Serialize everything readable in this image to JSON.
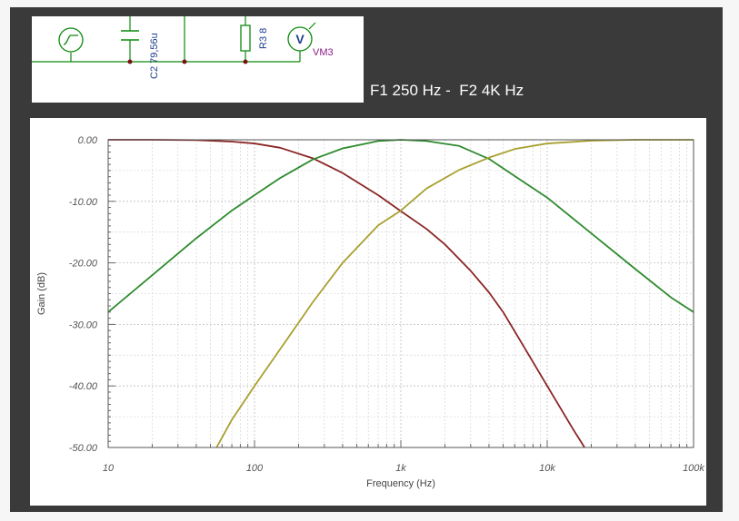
{
  "caption": "F1 250 Hz -  F2 4K Hz",
  "schematic": {
    "capacitor_label": "C2 79,56u",
    "resistor_label": "R3 8",
    "meter_symbol": "V",
    "meter_label": "VM3"
  },
  "chart_data": {
    "type": "line",
    "xlabel": "Frequency (Hz)",
    "ylabel": "Gain (dB)",
    "xscale": "log",
    "xlim": [
      10,
      100000
    ],
    "ylim": [
      -50,
      0
    ],
    "grid": true,
    "xticks": [
      10,
      100,
      1000,
      10000,
      100000
    ],
    "xtick_labels": [
      "10",
      "100",
      "1k",
      "10k",
      "100k"
    ],
    "yticks": [
      0,
      -10,
      -20,
      -30,
      -40,
      -50
    ],
    "ytick_labels": [
      "0.00",
      "-10.00",
      "-20.00",
      "-30.00",
      "-40.00",
      "-50.00"
    ],
    "series": [
      {
        "color": "#8b2525",
        "x": [
          10,
          20,
          40,
          70,
          100,
          150,
          250,
          400,
          700,
          1000,
          1500,
          2000,
          3000,
          4000,
          5000,
          7000,
          10000,
          15000,
          18000
        ],
        "y": [
          0,
          0,
          -0.05,
          -0.3,
          -0.6,
          -1.3,
          -3.0,
          -5.4,
          -9.0,
          -11.6,
          -14.5,
          -17.0,
          -21.3,
          -24.8,
          -28.0,
          -33.8,
          -40.0,
          -47.0,
          -50.0
        ]
      },
      {
        "color": "#2e8b2e",
        "x": [
          10,
          20,
          40,
          70,
          100,
          150,
          250,
          400,
          700,
          1000,
          1500,
          2500,
          4000,
          6000,
          10000,
          20000,
          40000,
          70000,
          100000
        ],
        "y": [
          -28,
          -22,
          -16,
          -11.5,
          -9,
          -6.2,
          -3.2,
          -1.4,
          -0.2,
          0,
          -0.2,
          -1.0,
          -3.1,
          -5.9,
          -9.4,
          -15.2,
          -21.0,
          -25.6,
          -28.0
        ]
      },
      {
        "color": "#a8a030",
        "x": [
          55,
          70,
          100,
          150,
          250,
          400,
          700,
          1000,
          1500,
          2500,
          4000,
          6000,
          10000,
          20000,
          40000,
          100000
        ],
        "y": [
          -50,
          -45.5,
          -40.0,
          -34.0,
          -26.4,
          -20.0,
          -13.9,
          -11.5,
          -7.9,
          -4.9,
          -2.9,
          -1.5,
          -0.6,
          -0.15,
          0,
          0
        ]
      }
    ]
  }
}
